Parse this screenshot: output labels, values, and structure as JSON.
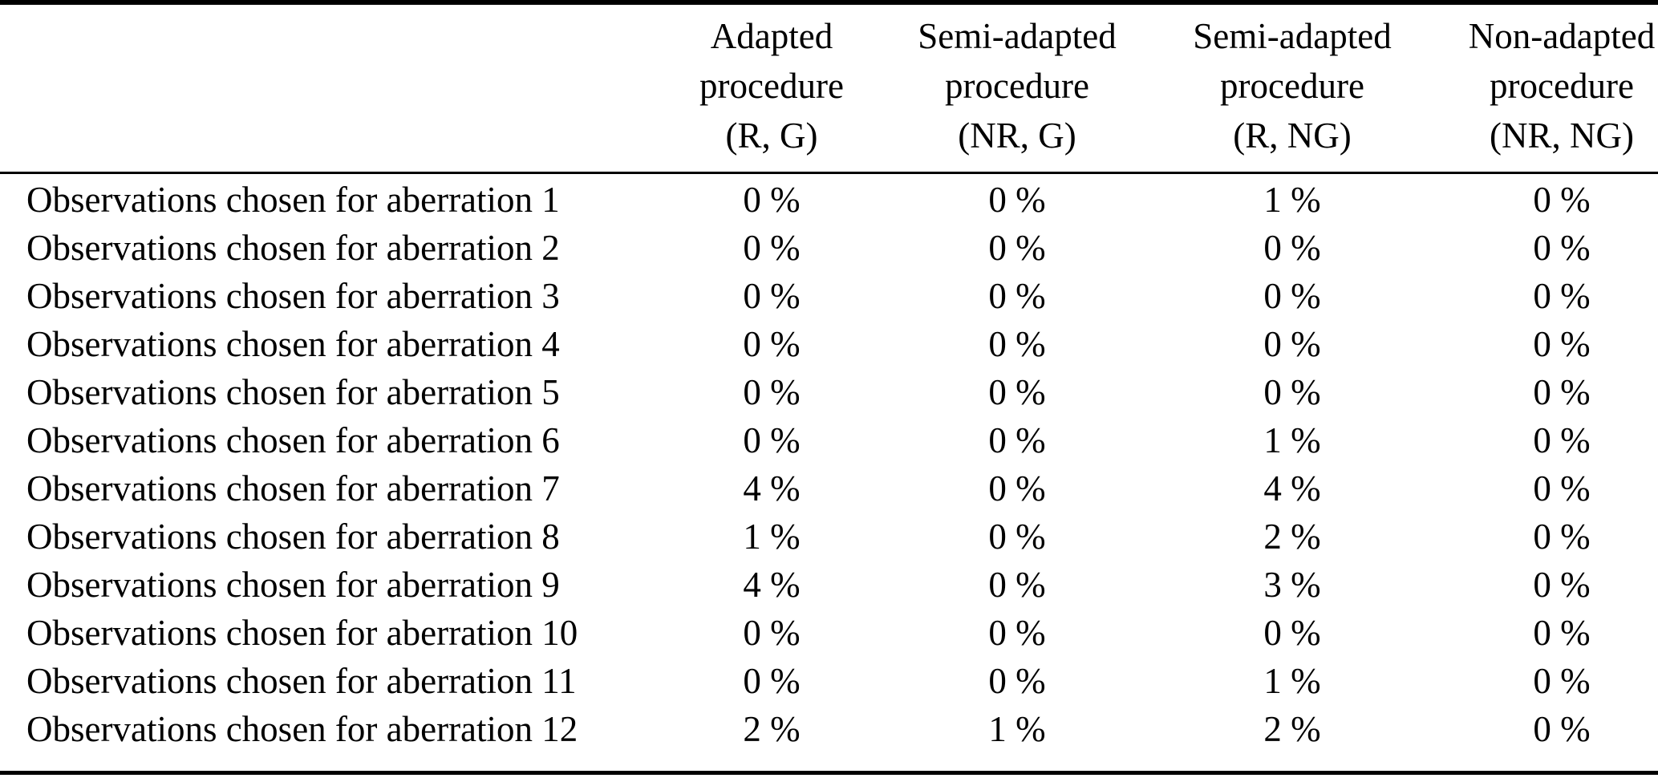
{
  "table": {
    "headers": [
      "",
      "Adapted\nprocedure\n(R, G)",
      "Semi-adapted\nprocedure\n(NR, G)",
      "Semi-adapted\nprocedure\n(R, NG)",
      "Non-adapted\nprocedure\n(NR, NG)"
    ],
    "rows": [
      {
        "label": "Observations chosen for aberration 1",
        "values": [
          "0 %",
          "0 %",
          "1 %",
          "0 %"
        ]
      },
      {
        "label": "Observations chosen for aberration 2",
        "values": [
          "0 %",
          "0 %",
          "0 %",
          "0 %"
        ]
      },
      {
        "label": "Observations chosen for aberration 3",
        "values": [
          "0 %",
          "0 %",
          "0 %",
          "0 %"
        ]
      },
      {
        "label": "Observations chosen for aberration 4",
        "values": [
          "0 %",
          "0 %",
          "0 %",
          "0 %"
        ]
      },
      {
        "label": "Observations chosen for aberration 5",
        "values": [
          "0 %",
          "0 %",
          "0 %",
          "0 %"
        ]
      },
      {
        "label": "Observations chosen for aberration 6",
        "values": [
          "0 %",
          "0 %",
          "1 %",
          "0 %"
        ]
      },
      {
        "label": "Observations chosen for aberration 7",
        "values": [
          "4 %",
          "0 %",
          "4 %",
          "0 %"
        ]
      },
      {
        "label": "Observations chosen for aberration 8",
        "values": [
          "1 %",
          "0 %",
          "2 %",
          "0 %"
        ]
      },
      {
        "label": "Observations chosen for aberration 9",
        "values": [
          "4 %",
          "0 %",
          "3 %",
          "0 %"
        ]
      },
      {
        "label": "Observations chosen for aberration 10",
        "values": [
          "0 %",
          "0 %",
          "0 %",
          "0 %"
        ]
      },
      {
        "label": "Observations chosen for aberration 11",
        "values": [
          "0 %",
          "0 %",
          "1 %",
          "0 %"
        ]
      },
      {
        "label": "Observations chosen for aberration 12",
        "values": [
          "2 %",
          "1 %",
          "2 %",
          "0 %"
        ]
      }
    ],
    "colors": {
      "text": "#000000",
      "rule": "#000000",
      "background": "#ffffff"
    }
  }
}
